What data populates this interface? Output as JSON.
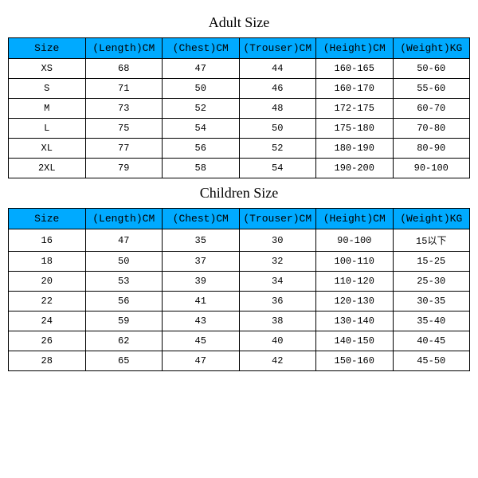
{
  "header_bg": "#00aaff",
  "border_color": "#000000",
  "background_color": "#ffffff",
  "adult": {
    "title": "Adult Size",
    "columns": [
      "Size",
      "(Length)CM",
      "(Chest)CM",
      "(Trouser)CM",
      "(Height)CM",
      "(Weight)KG"
    ],
    "rows": [
      [
        "XS",
        "68",
        "47",
        "44",
        "160-165",
        "50-60"
      ],
      [
        "S",
        "71",
        "50",
        "46",
        "160-170",
        "55-60"
      ],
      [
        "M",
        "73",
        "52",
        "48",
        "172-175",
        "60-70"
      ],
      [
        "L",
        "75",
        "54",
        "50",
        "175-180",
        "70-80"
      ],
      [
        "XL",
        "77",
        "56",
        "52",
        "180-190",
        "80-90"
      ],
      [
        "2XL",
        "79",
        "58",
        "54",
        "190-200",
        "90-100"
      ]
    ]
  },
  "children": {
    "title": "Children Size",
    "columns": [
      "Size",
      "(Length)CM",
      "(Chest)CM",
      "(Trouser)CM",
      "(Height)CM",
      "(Weight)KG"
    ],
    "rows": [
      [
        "16",
        "47",
        "35",
        "30",
        "90-100",
        "15以下"
      ],
      [
        "18",
        "50",
        "37",
        "32",
        "100-110",
        "15-25"
      ],
      [
        "20",
        "53",
        "39",
        "34",
        "110-120",
        "25-30"
      ],
      [
        "22",
        "56",
        "41",
        "36",
        "120-130",
        "30-35"
      ],
      [
        "24",
        "59",
        "43",
        "38",
        "130-140",
        "35-40"
      ],
      [
        "26",
        "62",
        "45",
        "40",
        "140-150",
        "40-45"
      ],
      [
        "28",
        "65",
        "47",
        "42",
        "150-160",
        "45-50"
      ]
    ]
  }
}
